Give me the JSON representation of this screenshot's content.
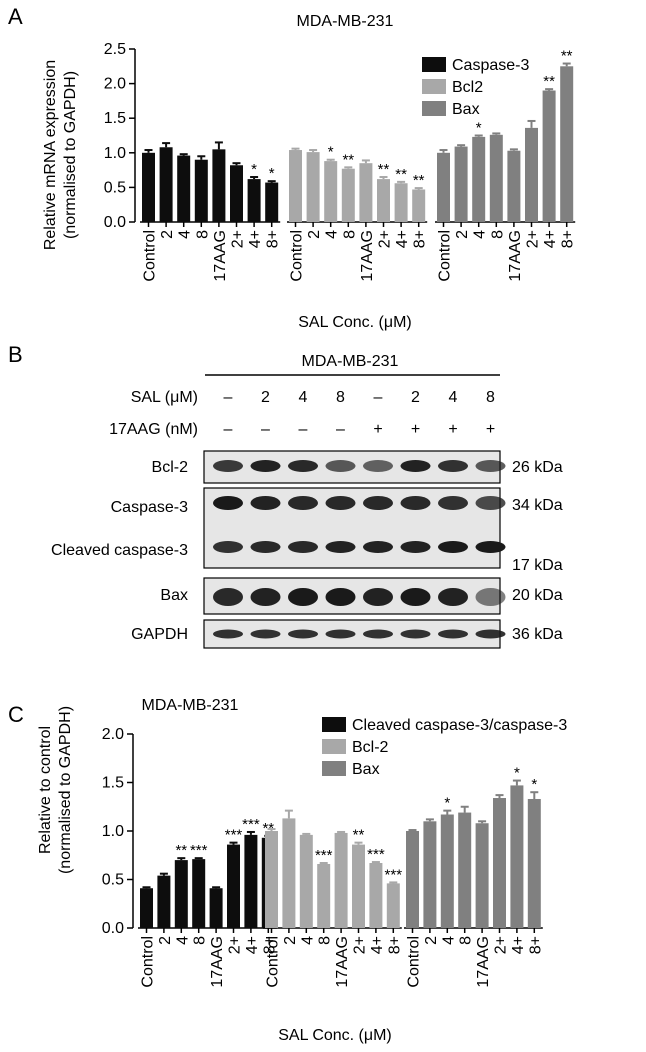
{
  "colors": {
    "black": "#0d0d0d",
    "light_gray": "#a8a8a8",
    "mid_gray": "#808080",
    "blot_bg": "#e6e6e6",
    "band": "#1a1a1a"
  },
  "panel_labels": [
    "A",
    "B",
    "C"
  ],
  "xlabel": "SAL Conc. (μM)",
  "chart_data": [
    {
      "type": "bar",
      "panel": "A",
      "title": "MDA-MB-231",
      "ylabel": "Relative mRNA expression (normalised to GAPDH)",
      "ylabel_lines": [
        "Relative mRNA expression",
        "(normalised to GAPDH)"
      ],
      "xlabel": "SAL Conc. (μM)",
      "ylim": [
        0,
        2.5
      ],
      "yticks": [
        "0.0",
        "0.5",
        "1.0",
        "1.5",
        "2.0",
        "2.5"
      ],
      "categories": [
        "Control",
        "2",
        "4",
        "8",
        "17AAG",
        "2+",
        "4+",
        "8+"
      ],
      "legend": "top-right",
      "series": [
        {
          "name": "Caspase-3",
          "color": "#0d0d0d",
          "values": [
            1.0,
            1.08,
            0.96,
            0.9,
            1.05,
            0.82,
            0.62,
            0.57
          ],
          "errors": [
            0.04,
            0.06,
            0.02,
            0.05,
            0.1,
            0.03,
            0.03,
            0.02
          ],
          "marks": [
            "",
            "",
            "",
            "",
            "",
            "",
            "*",
            "*"
          ]
        },
        {
          "name": "Bcl2",
          "color": "#a8a8a8",
          "values": [
            1.04,
            1.01,
            0.88,
            0.77,
            0.85,
            0.62,
            0.56,
            0.47
          ],
          "errors": [
            0.02,
            0.03,
            0.02,
            0.02,
            0.04,
            0.03,
            0.02,
            0.02
          ],
          "marks": [
            "",
            "",
            "*",
            "**",
            "",
            "**",
            "**",
            "**"
          ]
        },
        {
          "name": "Bax",
          "color": "#808080",
          "values": [
            1.0,
            1.09,
            1.23,
            1.26,
            1.03,
            1.36,
            1.9,
            2.25
          ],
          "errors": [
            0.04,
            0.02,
            0.02,
            0.02,
            0.02,
            0.1,
            0.02,
            0.04
          ],
          "marks": [
            "",
            "",
            "*",
            "",
            "",
            "",
            "**",
            "**"
          ]
        }
      ]
    },
    {
      "type": "bar",
      "panel": "C",
      "title": "MDA-MB-231",
      "ylabel": "Relative to control (normalised to GAPDH)",
      "ylabel_lines": [
        "Relative to control",
        "(normalised to GAPDH)"
      ],
      "xlabel": "SAL Conc. (μM)",
      "ylim": [
        0,
        2.0
      ],
      "yticks": [
        "0.0",
        "0.5",
        "1.0",
        "1.5",
        "2.0"
      ],
      "categories": [
        "Control",
        "2",
        "4",
        "8",
        "17AAG",
        "2+",
        "4+",
        "8+"
      ],
      "legend": "top-right",
      "series": [
        {
          "name": "Cleaved caspase-3/caspase-3",
          "color": "#0d0d0d",
          "values": [
            0.41,
            0.54,
            0.7,
            0.71,
            0.41,
            0.86,
            0.96,
            0.93
          ],
          "errors": [
            0.01,
            0.02,
            0.02,
            0.01,
            0.01,
            0.02,
            0.03,
            0.02
          ],
          "marks": [
            "",
            "",
            "**",
            "***",
            "",
            "***",
            "***",
            "**"
          ]
        },
        {
          "name": "Bcl-2",
          "color": "#a8a8a8",
          "values": [
            1.0,
            1.13,
            0.96,
            0.66,
            0.98,
            0.86,
            0.67,
            0.46
          ],
          "errors": [
            0.02,
            0.08,
            0.01,
            0.01,
            0.01,
            0.02,
            0.01,
            0.01
          ],
          "marks": [
            "",
            "",
            "",
            "***",
            "",
            "**",
            "***",
            "***"
          ]
        },
        {
          "name": "Bax",
          "color": "#808080",
          "values": [
            1.0,
            1.1,
            1.17,
            1.19,
            1.08,
            1.34,
            1.47,
            1.33
          ],
          "errors": [
            0.01,
            0.02,
            0.04,
            0.06,
            0.02,
            0.03,
            0.05,
            0.07
          ],
          "marks": [
            "",
            "",
            "*",
            "",
            "",
            "",
            "*",
            "*"
          ]
        }
      ]
    }
  ],
  "blot": {
    "title": "MDA-MB-231",
    "sal_label": "SAL (μM)",
    "aag_label": "17AAG (nM)",
    "sal_values": [
      "–",
      "2",
      "4",
      "8",
      "–",
      "2",
      "4",
      "8"
    ],
    "aag_values": [
      "–",
      "–",
      "–",
      "–",
      "+",
      "+",
      "+",
      "+"
    ],
    "rows": [
      {
        "label": "Bcl-2",
        "kda": "26 kDa",
        "intensity": [
          0.8,
          0.95,
          0.9,
          0.6,
          0.55,
          0.95,
          0.85,
          0.6
        ]
      },
      {
        "label": "Caspase-3",
        "kda": "34 kDa",
        "intensity": [
          1.0,
          0.95,
          0.9,
          0.9,
          0.9,
          0.9,
          0.85,
          0.7
        ]
      },
      {
        "label": "Cleaved caspase-3",
        "kda": "17 kDa",
        "intensity": [
          0.85,
          0.9,
          0.9,
          0.95,
          0.95,
          0.95,
          1.0,
          1.0
        ]
      },
      {
        "label": "Bax",
        "kda": "20 kDa",
        "intensity": [
          0.9,
          0.95,
          1.0,
          1.0,
          0.95,
          1.0,
          0.95,
          0.4
        ]
      },
      {
        "label": "GAPDH",
        "kda": "36 kDa",
        "intensity": [
          0.85,
          0.85,
          0.85,
          0.85,
          0.85,
          0.85,
          0.85,
          0.85
        ]
      }
    ]
  }
}
